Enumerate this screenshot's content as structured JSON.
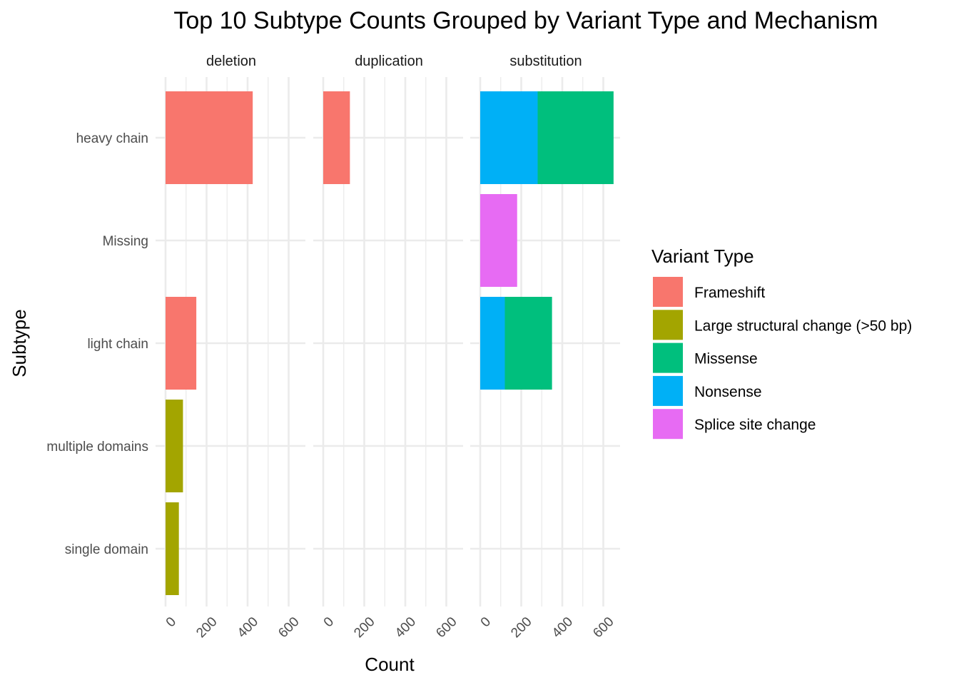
{
  "chart_data": {
    "type": "bar",
    "orientation": "horizontal",
    "stacked": true,
    "title": "Top 10 Subtype Counts Grouped by Variant Type and Mechanism",
    "xlabel": "Count",
    "ylabel": "Subtype",
    "xlim": [
      0,
      680
    ],
    "x_ticks": [
      "0",
      "200",
      "400",
      "600"
    ],
    "x_tick_values": [
      0,
      200,
      400,
      600
    ],
    "grid": true,
    "categories": [
      "heavy chain",
      "Missing",
      "light chain",
      "multiple domains",
      "single domain"
    ],
    "facets": [
      "deletion",
      "duplication",
      "substitution"
    ],
    "legend": {
      "title": "Variant Type",
      "position": "right",
      "entries": [
        "Frameshift",
        "Large structural change (>50 bp)",
        "Missense",
        "Nonsense",
        "Splice site change"
      ]
    },
    "colors": {
      "Frameshift": "#F8766D",
      "Large structural change (>50 bp)": "#A3A500",
      "Missense": "#00BF7D",
      "Nonsense": "#00B0F6",
      "Splice site change": "#E76BF3"
    },
    "series": [
      {
        "name": "Frameshift",
        "values": {
          "deletion": [
            425,
            0,
            150,
            0,
            0
          ],
          "duplication": [
            130,
            0,
            0,
            0,
            0
          ],
          "substitution": [
            0,
            0,
            0,
            0,
            0
          ]
        }
      },
      {
        "name": "Large structural change (>50 bp)",
        "values": {
          "deletion": [
            0,
            0,
            0,
            85,
            65
          ],
          "duplication": [
            0,
            0,
            0,
            0,
            0
          ],
          "substitution": [
            0,
            0,
            0,
            0,
            0
          ]
        }
      },
      {
        "name": "Missense",
        "values": {
          "deletion": [
            0,
            0,
            0,
            0,
            0
          ],
          "duplication": [
            0,
            0,
            0,
            0,
            0
          ],
          "substitution": [
            370,
            0,
            230,
            0,
            0
          ]
        }
      },
      {
        "name": "Nonsense",
        "values": {
          "deletion": [
            0,
            0,
            0,
            0,
            0
          ],
          "duplication": [
            0,
            0,
            0,
            0,
            0
          ],
          "substitution": [
            280,
            0,
            120,
            0,
            0
          ]
        }
      },
      {
        "name": "Splice site change",
        "values": {
          "deletion": [
            0,
            0,
            0,
            0,
            0
          ],
          "duplication": [
            0,
            0,
            0,
            0,
            0
          ],
          "substitution": [
            0,
            180,
            0,
            0,
            0
          ]
        }
      }
    ],
    "stack_order": [
      "Nonsense",
      "Missense",
      "Frameshift",
      "Large structural change (>50 bp)",
      "Splice site change"
    ]
  }
}
